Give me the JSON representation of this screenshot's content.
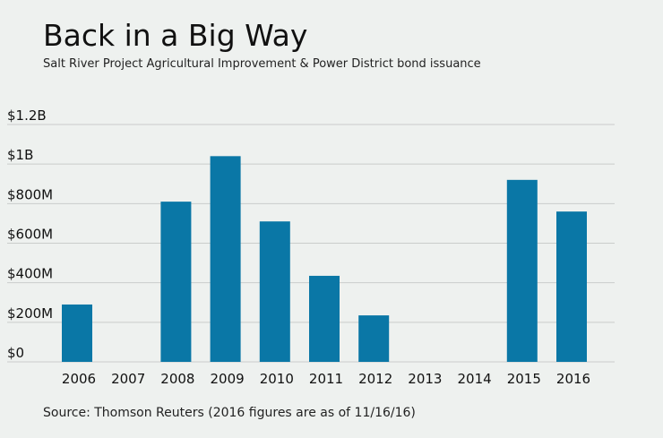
{
  "chart_data": {
    "type": "bar",
    "title": "Back in a Big Way",
    "subtitle": "Salt River Project Agricultural Improvement & Power District bond issuance",
    "source": "Source: Thomson Reuters (2016 figures are as of 11/16/16)",
    "categories": [
      "2006",
      "2007",
      "2008",
      "2009",
      "2010",
      "2011",
      "2012",
      "2013",
      "2014",
      "2015",
      "2016"
    ],
    "values": [
      290,
      0,
      810,
      1040,
      710,
      435,
      235,
      0,
      0,
      920,
      760
    ],
    "y_unit": "millions of dollars",
    "ylim": [
      0,
      1200
    ],
    "y_ticks": [
      {
        "value": 0,
        "label": "$0"
      },
      {
        "value": 200,
        "label": "$200M"
      },
      {
        "value": 400,
        "label": "$400M"
      },
      {
        "value": 600,
        "label": "$600M"
      },
      {
        "value": 800,
        "label": "$800M"
      },
      {
        "value": 1000,
        "label": "$1B"
      },
      {
        "value": 1200,
        "label": "$1.2B"
      }
    ],
    "grid": true,
    "bar_color": "#0a77a6",
    "grid_color": "#c9cccb",
    "background": "#eef1ef"
  }
}
